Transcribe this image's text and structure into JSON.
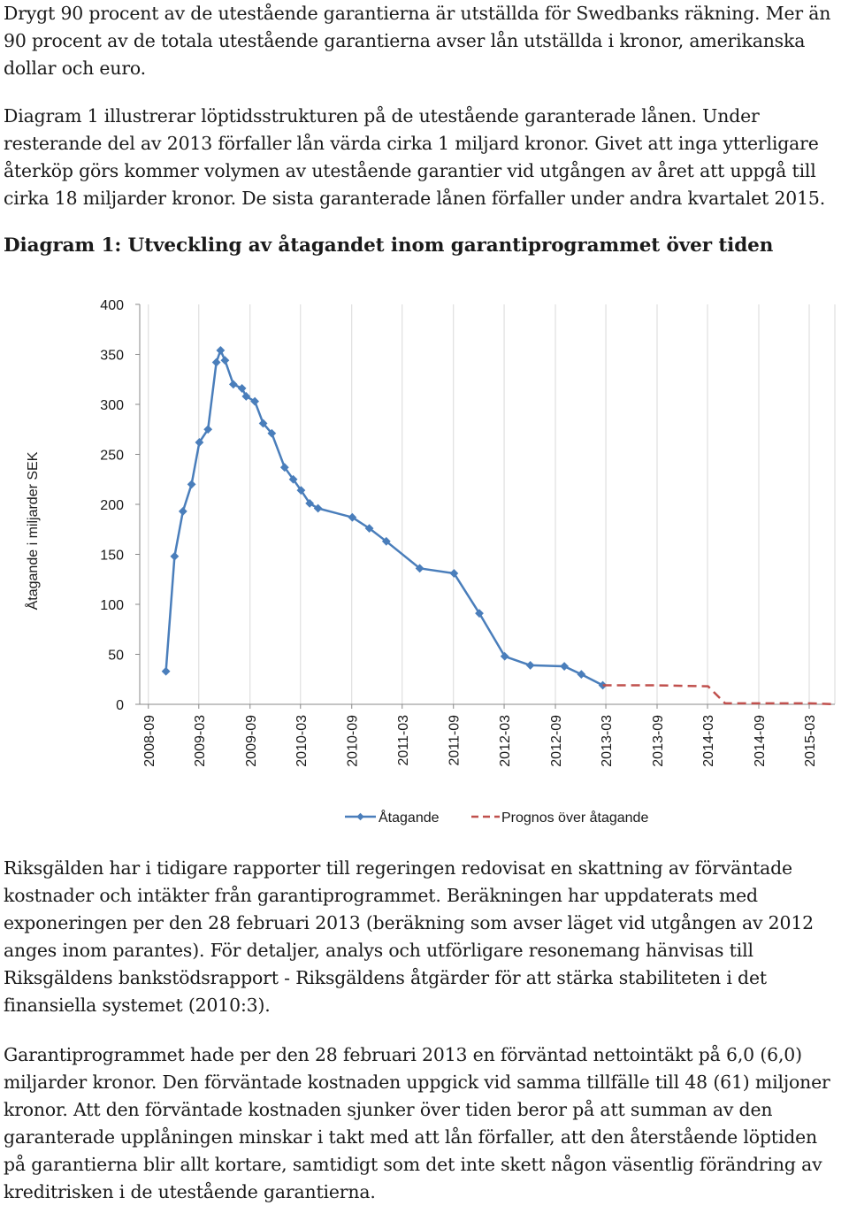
{
  "paragraphs": {
    "p1": "Drygt 90 procent av de utestående garantierna är utställda för Swedbanks räkning. Mer än 90 procent av de totala utestående garantierna avser lån utställda i kronor, amerikanska dollar och euro.",
    "p2": "Diagram 1 illustrerar löptidsstrukturen på de utestående garanterade lånen. Under resterande del av 2013 förfaller lån värda cirka 1 miljard kronor. Givet att inga ytterligare återköp görs kommer volymen av utestående garantier vid utgången av året att uppgå till cirka 18 miljarder kronor. De sista garanterade lånen förfaller under andra kvartalet 2015.",
    "p3": "Riksgälden har i tidigare rapporter till regeringen redovisat en skattning av förväntade kostnader och intäkter från garantiprogrammet. Beräkningen har uppdaterats med exponeringen per den 28 februari 2013 (beräkning som avser läget vid utgången av 2012 anges inom parantes). För detaljer, analys och utförligare resonemang hänvisas till Riksgäldens bankstödsrapport - Riksgäldens åtgärder för att stärka stabiliteten i det finansiella systemet (2010:3).",
    "p4": "Garantiprogrammet hade per den 28 februari 2013 en förväntad nettointäkt på 6,0 (6,0) miljarder kronor. Den förväntade kostnaden uppgick vid samma tillfälle till 48 (61) miljoner kronor. Att den förväntade kostnaden sjunker över tiden beror på att summan av den garanterade upplåningen minskar i takt med att lån förfaller, att den återstående löptiden på garantierna blir allt kortare, samtidigt som det inte skett någon väsentlig förändring av kreditrisken i de utestående garantierna."
  },
  "heading": "Diagram 1: Utveckling av åtagandet inom garantiprogrammet över tiden",
  "chart_data": {
    "type": "line",
    "ylabel": "Åtagande i miljarder SEK",
    "ylim": [
      0,
      400
    ],
    "yticks": [
      0,
      50,
      100,
      150,
      200,
      250,
      300,
      350,
      400
    ],
    "xlim": [
      "2008-08",
      "2015-06"
    ],
    "xticks": [
      "2008-09",
      "2009-03",
      "2009-09",
      "2010-03",
      "2010-09",
      "2011-03",
      "2011-09",
      "2012-03",
      "2012-09",
      "2013-03",
      "2013-09",
      "2014-03",
      "2014-09",
      "2015-03"
    ],
    "legend_position": "bottom",
    "grid": "vertical",
    "series": [
      {
        "name": "Åtagande",
        "style": "solid-with-diamonds",
        "color": "#4a7ebb",
        "points": [
          [
            "2008-11-03",
            33
          ],
          [
            "2008-12-04",
            148
          ],
          [
            "2009-01-03",
            193
          ],
          [
            "2009-02-03",
            220
          ],
          [
            "2009-03-03",
            262
          ],
          [
            "2009-04-03",
            275
          ],
          [
            "2009-05-03",
            342
          ],
          [
            "2009-05-18",
            354
          ],
          [
            "2009-06-03",
            344
          ],
          [
            "2009-07-03",
            320
          ],
          [
            "2009-08-03",
            316
          ],
          [
            "2009-08-18",
            308
          ],
          [
            "2009-09-18",
            303
          ],
          [
            "2009-10-18",
            281
          ],
          [
            "2009-11-18",
            271
          ],
          [
            "2010-01-03",
            237
          ],
          [
            "2010-02-03",
            225
          ],
          [
            "2010-03-03",
            214
          ],
          [
            "2010-04-03",
            201
          ],
          [
            "2010-05-03",
            196
          ],
          [
            "2010-09-03",
            187
          ],
          [
            "2010-11-03",
            176
          ],
          [
            "2011-01-03",
            163
          ],
          [
            "2011-05-03",
            136
          ],
          [
            "2011-09-03",
            131
          ],
          [
            "2011-12-03",
            91
          ],
          [
            "2012-03-03",
            48
          ],
          [
            "2012-06-03",
            39
          ],
          [
            "2012-10-03",
            38
          ],
          [
            "2012-12-03",
            30
          ],
          [
            "2013-02-18",
            19
          ]
        ]
      },
      {
        "name": "Prognos över åtagande",
        "style": "dashed",
        "color": "#c0504d",
        "points": [
          [
            "2013-02-18",
            19
          ],
          [
            "2013-09-03",
            19
          ],
          [
            "2014-03-03",
            18
          ],
          [
            "2014-05-03",
            1
          ],
          [
            "2015-03-03",
            1
          ],
          [
            "2015-06-03",
            0
          ]
        ]
      }
    ]
  }
}
